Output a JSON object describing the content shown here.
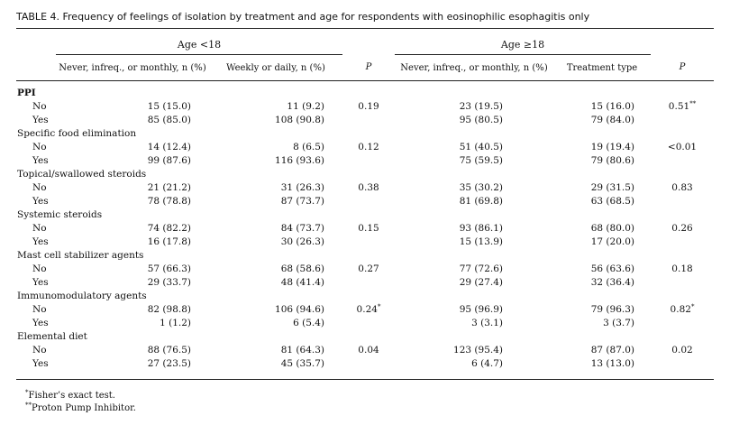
{
  "title": "TABLE 4.  Frequency of feelings of isolation by treatment and age for respondents with eosinophilic esophagitis only",
  "groups": {
    "under18": "Age <18",
    "over18": "Age ≥18"
  },
  "columns": {
    "c1": "Never, infreq., or monthly, n (%)",
    "c2": "Weekly or daily, n (%)",
    "c3": "P",
    "c4": "Never, infreq., or monthly, n (%)",
    "c5": "Treatment type",
    "c6": "P"
  },
  "sections": [
    {
      "name": "PPI",
      "bold": true,
      "rows": [
        {
          "label": "No",
          "c1": "15 (15.0)",
          "c2": "11 (9.2)",
          "p1": "0.19",
          "p1_sup": "",
          "c4": "23 (19.5)",
          "c5": "15 (16.0)",
          "p2": "0.51",
          "p2_sup": "**"
        },
        {
          "label": "Yes",
          "c1": "85 (85.0)",
          "c2": "108 (90.8)",
          "p1": "",
          "p1_sup": "",
          "c4": "95 (80.5)",
          "c5": "79 (84.0)",
          "p2": "",
          "p2_sup": ""
        }
      ]
    },
    {
      "name": "Specific food elimination",
      "bold": false,
      "rows": [
        {
          "label": "No",
          "c1": "14 (12.4)",
          "c2": "8 (6.5)",
          "p1": "0.12",
          "p1_sup": "",
          "c4": "51 (40.5)",
          "c5": "19 (19.4)",
          "p2": "<0.01",
          "p2_sup": ""
        },
        {
          "label": "Yes",
          "c1": "99 (87.6)",
          "c2": "116 (93.6)",
          "p1": "",
          "p1_sup": "",
          "c4": "75 (59.5)",
          "c5": "79 (80.6)",
          "p2": "",
          "p2_sup": ""
        }
      ]
    },
    {
      "name": "Topical/swallowed steroids",
      "bold": false,
      "rows": [
        {
          "label": "No",
          "c1": "21 (21.2)",
          "c2": "31 (26.3)",
          "p1": "0.38",
          "p1_sup": "",
          "c4": "35 (30.2)",
          "c5": "29 (31.5)",
          "p2": "0.83",
          "p2_sup": ""
        },
        {
          "label": "Yes",
          "c1": "78 (78.8)",
          "c2": "87 (73.7)",
          "p1": "",
          "p1_sup": "",
          "c4": "81 (69.8)",
          "c5": "63 (68.5)",
          "p2": "",
          "p2_sup": ""
        }
      ]
    },
    {
      "name": "Systemic steroids",
      "bold": false,
      "rows": [
        {
          "label": "No",
          "c1": "74 (82.2)",
          "c2": "84 (73.7)",
          "p1": "0.15",
          "p1_sup": "",
          "c4": "93 (86.1)",
          "c5": "68 (80.0)",
          "p2": "0.26",
          "p2_sup": ""
        },
        {
          "label": "Yes",
          "c1": "16 (17.8)",
          "c2": "30 (26.3)",
          "p1": "",
          "p1_sup": "",
          "c4": "15 (13.9)",
          "c5": "17 (20.0)",
          "p2": "",
          "p2_sup": ""
        }
      ]
    },
    {
      "name": "Mast cell stabilizer agents",
      "bold": false,
      "rows": [
        {
          "label": "No",
          "c1": "57 (66.3)",
          "c2": "68 (58.6)",
          "p1": "0.27",
          "p1_sup": "",
          "c4": "77 (72.6)",
          "c5": "56 (63.6)",
          "p2": "0.18",
          "p2_sup": ""
        },
        {
          "label": "Yes",
          "c1": "29 (33.7)",
          "c2": "48 (41.4)",
          "p1": "",
          "p1_sup": "",
          "c4": "29 (27.4)",
          "c5": "32 (36.4)",
          "p2": "",
          "p2_sup": ""
        }
      ]
    },
    {
      "name": "Immunomodulatory agents",
      "bold": false,
      "rows": [
        {
          "label": "No",
          "c1": "82 (98.8)",
          "c2": "106 (94.6)",
          "p1": "0.24",
          "p1_sup": "*",
          "c4": "95 (96.9)",
          "c5": "79 (96.3)",
          "p2": "0.82",
          "p2_sup": "*"
        },
        {
          "label": "Yes",
          "c1": "1 (1.2)",
          "c2": "6 (5.4)",
          "p1": "",
          "p1_sup": "",
          "c4": "3 (3.1)",
          "c5": "3 (3.7)",
          "p2": "",
          "p2_sup": ""
        }
      ]
    },
    {
      "name": "Elemental diet",
      "bold": false,
      "rows": [
        {
          "label": "No",
          "c1": "88 (76.5)",
          "c2": "81 (64.3)",
          "p1": "0.04",
          "p1_sup": "",
          "c4": "123 (95.4)",
          "c5": "87 (87.0)",
          "p2": "0.02",
          "p2_sup": ""
        },
        {
          "label": "Yes",
          "c1": "27 (23.5)",
          "c2": "45 (35.7)",
          "p1": "",
          "p1_sup": "",
          "c4": "6 (4.7)",
          "c5": "13 (13.0)",
          "p2": "",
          "p2_sup": ""
        }
      ]
    }
  ],
  "footnotes": [
    {
      "mark": "*",
      "text": "Fisher’s exact test."
    },
    {
      "mark": "**",
      "text": "Proton Pump Inhibitor."
    }
  ]
}
